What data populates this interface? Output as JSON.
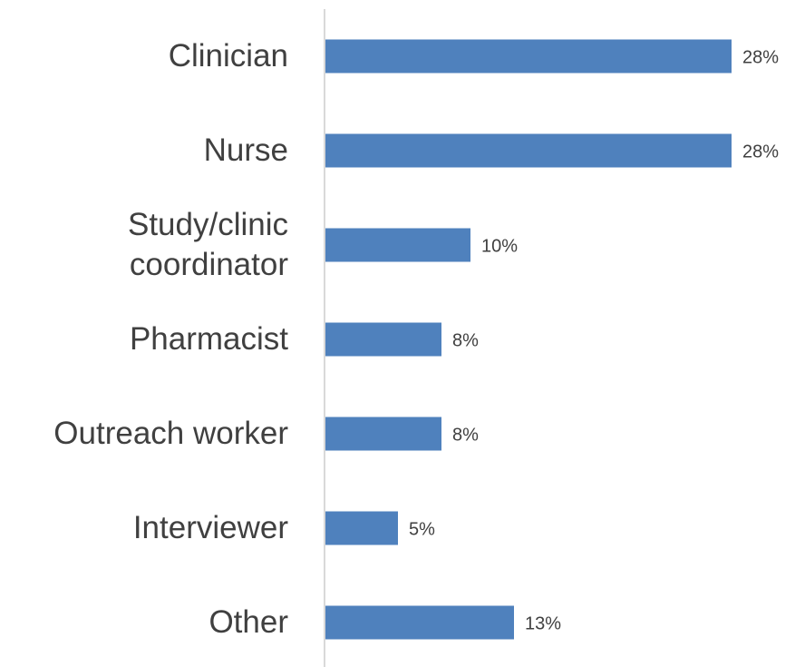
{
  "chart_data": {
    "type": "bar",
    "orientation": "horizontal",
    "categories": [
      "Clinician",
      "Nurse",
      "Study/clinic coordinator",
      "Pharmacist",
      "Outreach worker",
      "Interviewer",
      "Other"
    ],
    "values": [
      28,
      28,
      10,
      8,
      8,
      5,
      13
    ],
    "value_labels": [
      "28%",
      "28%",
      "10%",
      "8%",
      "8%",
      "5%",
      "13%"
    ],
    "color": "#4f81bd"
  }
}
